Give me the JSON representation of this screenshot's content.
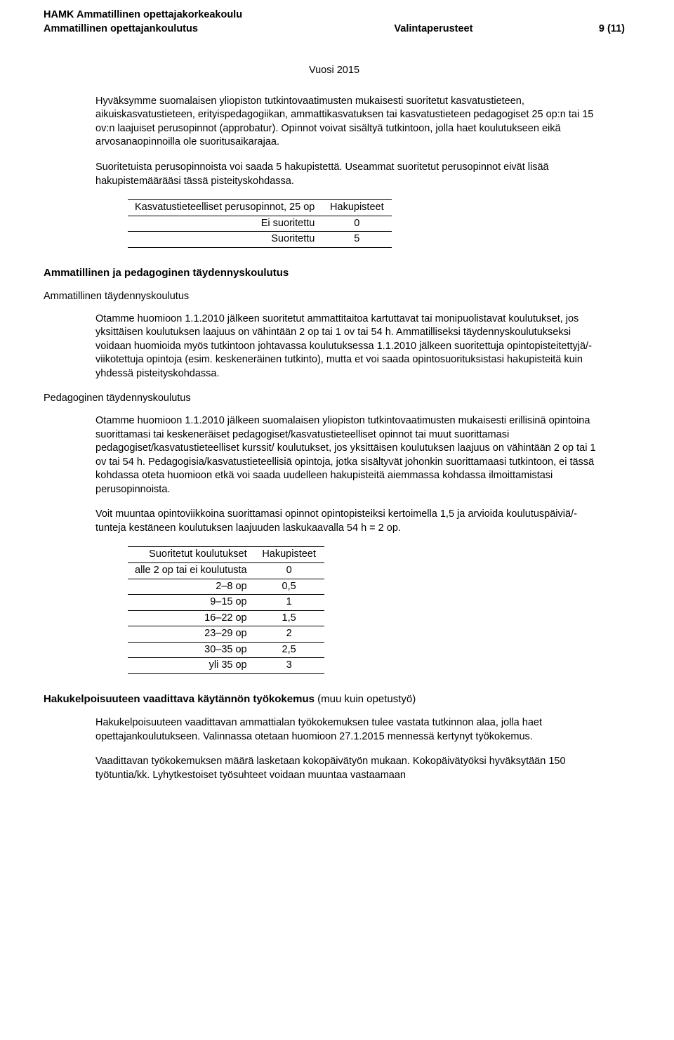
{
  "header": {
    "line1": "HAMK Ammatillinen opettajakorkeakoulu",
    "line2_left": "Ammatillinen opettajankoulutus",
    "line2_center": "Valintaperusteet",
    "line2_right": "9 (11)"
  },
  "vuosi": "Vuosi 2015",
  "intro": {
    "p1": "Hyväksymme suomalaisen yliopiston tutkintovaatimusten mukaisesti suoritetut kasvatustieteen, aikuiskasvatustieteen, erityispedagogiikan, ammattikasvatuksen tai kasvatustieteen pedagogiset 25 op:n tai 15 ov:n laajuiset perusopinnot (approbatur). Opinnot voivat sisältyä tutkintoon, jolla haet koulutukseen eikä arvosanaopinnoilla ole suoritusaikarajaa.",
    "p2": "Suoritetuista perusopinnoista voi saada 5 hakupistettä. Useammat suoritetut perusopinnot eivät lisää hakupistemäärääsi tässä pisteityskohdassa."
  },
  "table1": {
    "columns": [
      "Kasvatustieteelliset perusopinnot, 25 op",
      "Hakupisteet"
    ],
    "rows": [
      [
        "Ei suoritettu",
        "0"
      ],
      [
        "Suoritettu",
        "5"
      ]
    ]
  },
  "section_amm_ped": {
    "heading": "Ammatillinen ja pedagoginen täydennyskoulutus",
    "sub1": "Ammatillinen täydennyskoulutus",
    "p1": "Otamme huomioon 1.1.2010 jälkeen suoritetut ammattitaitoa kartuttavat tai monipuolistavat koulutukset, jos yksittäisen koulutuksen laajuus on vähintään 2 op tai 1 ov tai 54 h. Ammatilliseksi täydennyskoulutukseksi voidaan huomioida myös tutkintoon johtavassa koulutuksessa 1.1.2010 jälkeen suoritettuja opintopisteitettyjä/-viikotettuja opintoja (esim. keskeneräinen tutkinto), mutta et voi saada opintosuorituksistasi hakupisteitä kuin yhdessä pisteityskohdassa.",
    "sub2": "Pedagoginen täydennyskoulutus",
    "p2": "Otamme huomioon 1.1.2010 jälkeen suomalaisen yliopiston tutkintovaatimusten mukaisesti erillisinä opintoina suorittamasi tai keskeneräiset pedagogiset/kasvatustieteelliset opinnot tai muut suorittamasi pedagogiset/kasvatustieteelliset kurssit/ koulutukset, jos yksittäisen koulutuksen laajuus on vähintään 2 op tai 1 ov tai 54 h. Pedagogisia/kasvatustieteellisiä opintoja, jotka sisältyvät johonkin suorittamaasi tutkintoon, ei tässä kohdassa oteta huomioon etkä voi saada uudelleen hakupisteitä aiemmassa kohdassa ilmoittamistasi perusopinnoista.",
    "p3": "Voit muuntaa opintoviikkoina suorittamasi opinnot opintopisteiksi kertoimella 1,5 ja arvioida koulutuspäiviä/-tunteja kestäneen koulutuksen laajuuden laskukaavalla 54 h = 2 op."
  },
  "table2": {
    "columns": [
      "Suoritetut koulutukset",
      "Hakupisteet"
    ],
    "rows": [
      [
        "alle 2 op tai ei koulutusta",
        "0"
      ],
      [
        "2–8 op",
        "0,5"
      ],
      [
        "9–15 op",
        "1"
      ],
      [
        "16–22 op",
        "1,5"
      ],
      [
        "23–29 op",
        "2"
      ],
      [
        "30–35 op",
        "2,5"
      ],
      [
        "yli 35 op",
        "3"
      ]
    ]
  },
  "section_hakukelp": {
    "heading_bold": "Hakukelpoisuuteen vaadittava käytännön työkokemus",
    "heading_rest": " (muu kuin opetustyö)",
    "p1": "Hakukelpoisuuteen vaadittavan ammattialan työkokemuksen tulee vastata tutkinnon alaa, jolla haet opettajankoulutukseen. Valinnassa otetaan huomioon 27.1.2015 mennessä kertynyt työkokemus.",
    "p2": "Vaadittavan työkokemuksen määrä lasketaan kokopäivätyön mukaan. Kokopäivätyöksi hyväksytään 150 työtuntia/kk. Lyhytkestoiset työsuhteet voidaan muuntaa vastaamaan"
  }
}
